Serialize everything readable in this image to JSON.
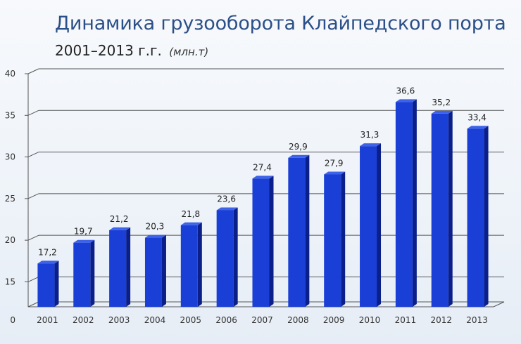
{
  "title": "Динамика грузооборота Клайпедского порта",
  "subtitle": "2001–2013 г.г.",
  "unit": "(млн.т)",
  "colors": {
    "bar_front": "#1a3fd6",
    "bar_side": "#0b1f8a",
    "bar_top": "#3f63e8",
    "grid": "#555555",
    "title": "#2b4f88"
  },
  "chart_data": {
    "type": "bar",
    "categories": [
      "2001",
      "2002",
      "2003",
      "2004",
      "2005",
      "2006",
      "2007",
      "2008",
      "2009",
      "2010",
      "2011",
      "2012",
      "2013"
    ],
    "values": [
      17.2,
      19.7,
      21.2,
      20.3,
      21.8,
      23.6,
      27.4,
      29.9,
      27.9,
      31.3,
      36.6,
      35.2,
      33.4
    ],
    "value_labels": [
      "17,2",
      "19,7",
      "21,2",
      "20,3",
      "21,8",
      "23,6",
      "27,4",
      "29,9",
      "27,9",
      "31,3",
      "36,6",
      "35,2",
      "33,4"
    ],
    "y_ticks": [
      "0",
      "15",
      "20",
      "25",
      "30",
      "35",
      "40"
    ],
    "y_tick_values": [
      15,
      20,
      25,
      30,
      35,
      40
    ],
    "axis_break": "0 shown at bottom, axis starts at 12",
    "ylim": [
      12,
      40
    ],
    "title": "Динамика грузооборота Клайпедского порта",
    "subtitle": "2001–2013 г.г. (млн.т)",
    "xlabel": "",
    "ylabel": "",
    "grid": true,
    "legend": "none"
  }
}
